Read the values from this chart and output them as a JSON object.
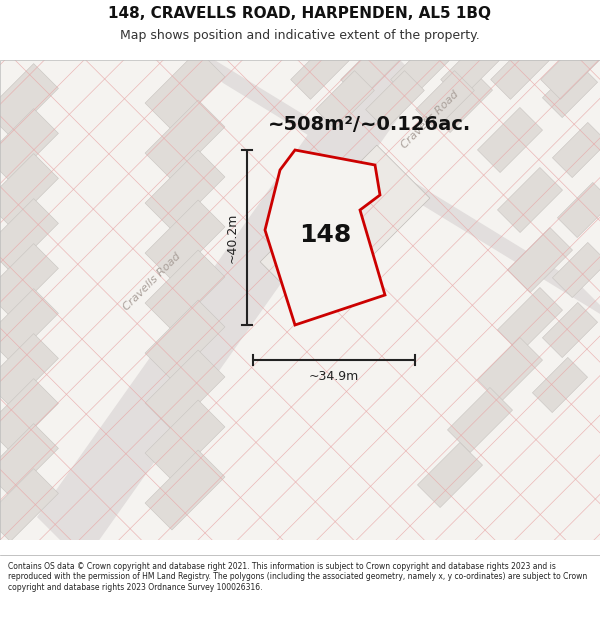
{
  "title": "148, CRAVELLS ROAD, HARPENDEN, AL5 1BQ",
  "subtitle": "Map shows position and indicative extent of the property.",
  "area_text": "~508m²/~0.126ac.",
  "property_number": "148",
  "dim_height": "~40.2m",
  "dim_width": "~34.9m",
  "street_label_left": "Cravells Road",
  "street_label_top": "Cravells Road",
  "footer": "Contains OS data © Crown copyright and database right 2021. This information is subject to Crown copyright and database rights 2023 and is reproduced with the permission of HM Land Registry. The polygons (including the associated geometry, namely x, y co-ordinates) are subject to Crown copyright and database rights 2023 Ordnance Survey 100026316.",
  "map_bg": "#f5f3f0",
  "block_color": "#e0dcd8",
  "road_color": "#e8e5e1",
  "plot_line_color": "#cc0000",
  "plot_fill_color": "#f5f3f0",
  "pink_line_color": "#e8a8a8",
  "title_fontsize": 11,
  "subtitle_fontsize": 9,
  "footer_fontsize": 5.5
}
